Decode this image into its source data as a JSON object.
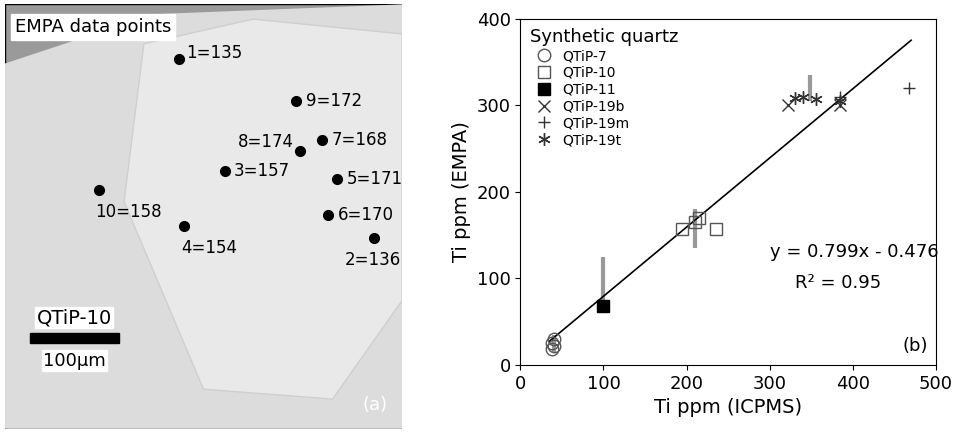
{
  "panel_a": {
    "title": "EMPA data points",
    "points": [
      "1=135",
      "2=136",
      "3=157",
      "4=154",
      "5=171",
      "6=170",
      "7=168",
      "8=174",
      "9=172",
      "10=158"
    ],
    "sample": "QTiP-10",
    "scale": "100μm",
    "panel_label": "(a)"
  },
  "chart_data": {
    "type": "scatter",
    "x_label": "Ti ppm (ICPMS)",
    "y_label": "Ti ppm (EMPA)",
    "xlim": [
      0,
      500
    ],
    "xticks": [
      0,
      100,
      200,
      300,
      400,
      500
    ],
    "ylim": [
      0,
      400
    ],
    "yticks": [
      0,
      100,
      200,
      300,
      400
    ],
    "legend": "upper left",
    "legend_title": "Synthetic quartz",
    "series": [
      {
        "name": "QTiP-7",
        "color": "#555555",
        "marker": "circle_open",
        "x": [
          38,
          38,
          40,
          40
        ],
        "values": [
          18,
          25,
          30,
          22
        ]
      },
      {
        "name": "QTiP-10",
        "color": "#555555",
        "marker": "square_open",
        "x": [
          195,
          210,
          215,
          235
        ],
        "values": [
          157,
          165,
          170,
          157
        ]
      },
      {
        "name": "QTiP-11",
        "color": "#000000",
        "marker": "square_filled",
        "x": [
          100
        ],
        "values": [
          68
        ]
      },
      {
        "name": "QTiP-19b",
        "color": "#333333",
        "marker": "x",
        "x": [
          322,
          385
        ],
        "values": [
          300,
          300
        ]
      },
      {
        "name": "QTiP-19m",
        "color": "#333333",
        "marker": "plus",
        "x": [
          385,
          468
        ],
        "values": [
          310,
          320
        ]
      },
      {
        "name": "QTiP-19t",
        "color": "#333333",
        "marker": "asterisk",
        "x": [
          330,
          340,
          355,
          385
        ],
        "values": [
          308,
          310,
          307,
          305
        ]
      }
    ],
    "error_bars": {
      "x": [
        40,
        100,
        210,
        348
      ],
      "low": [
        15,
        70,
        135,
        305
      ],
      "high": [
        35,
        125,
        180,
        335
      ],
      "color": "#999999"
    },
    "fit_line": {
      "x": [
        35,
        470
      ],
      "values": [
        27.5,
        375
      ],
      "color": "#000000"
    },
    "annotations": [
      "y = 0.799x - 0.476",
      "R² = 0.95"
    ],
    "panel_label": "(b)"
  }
}
